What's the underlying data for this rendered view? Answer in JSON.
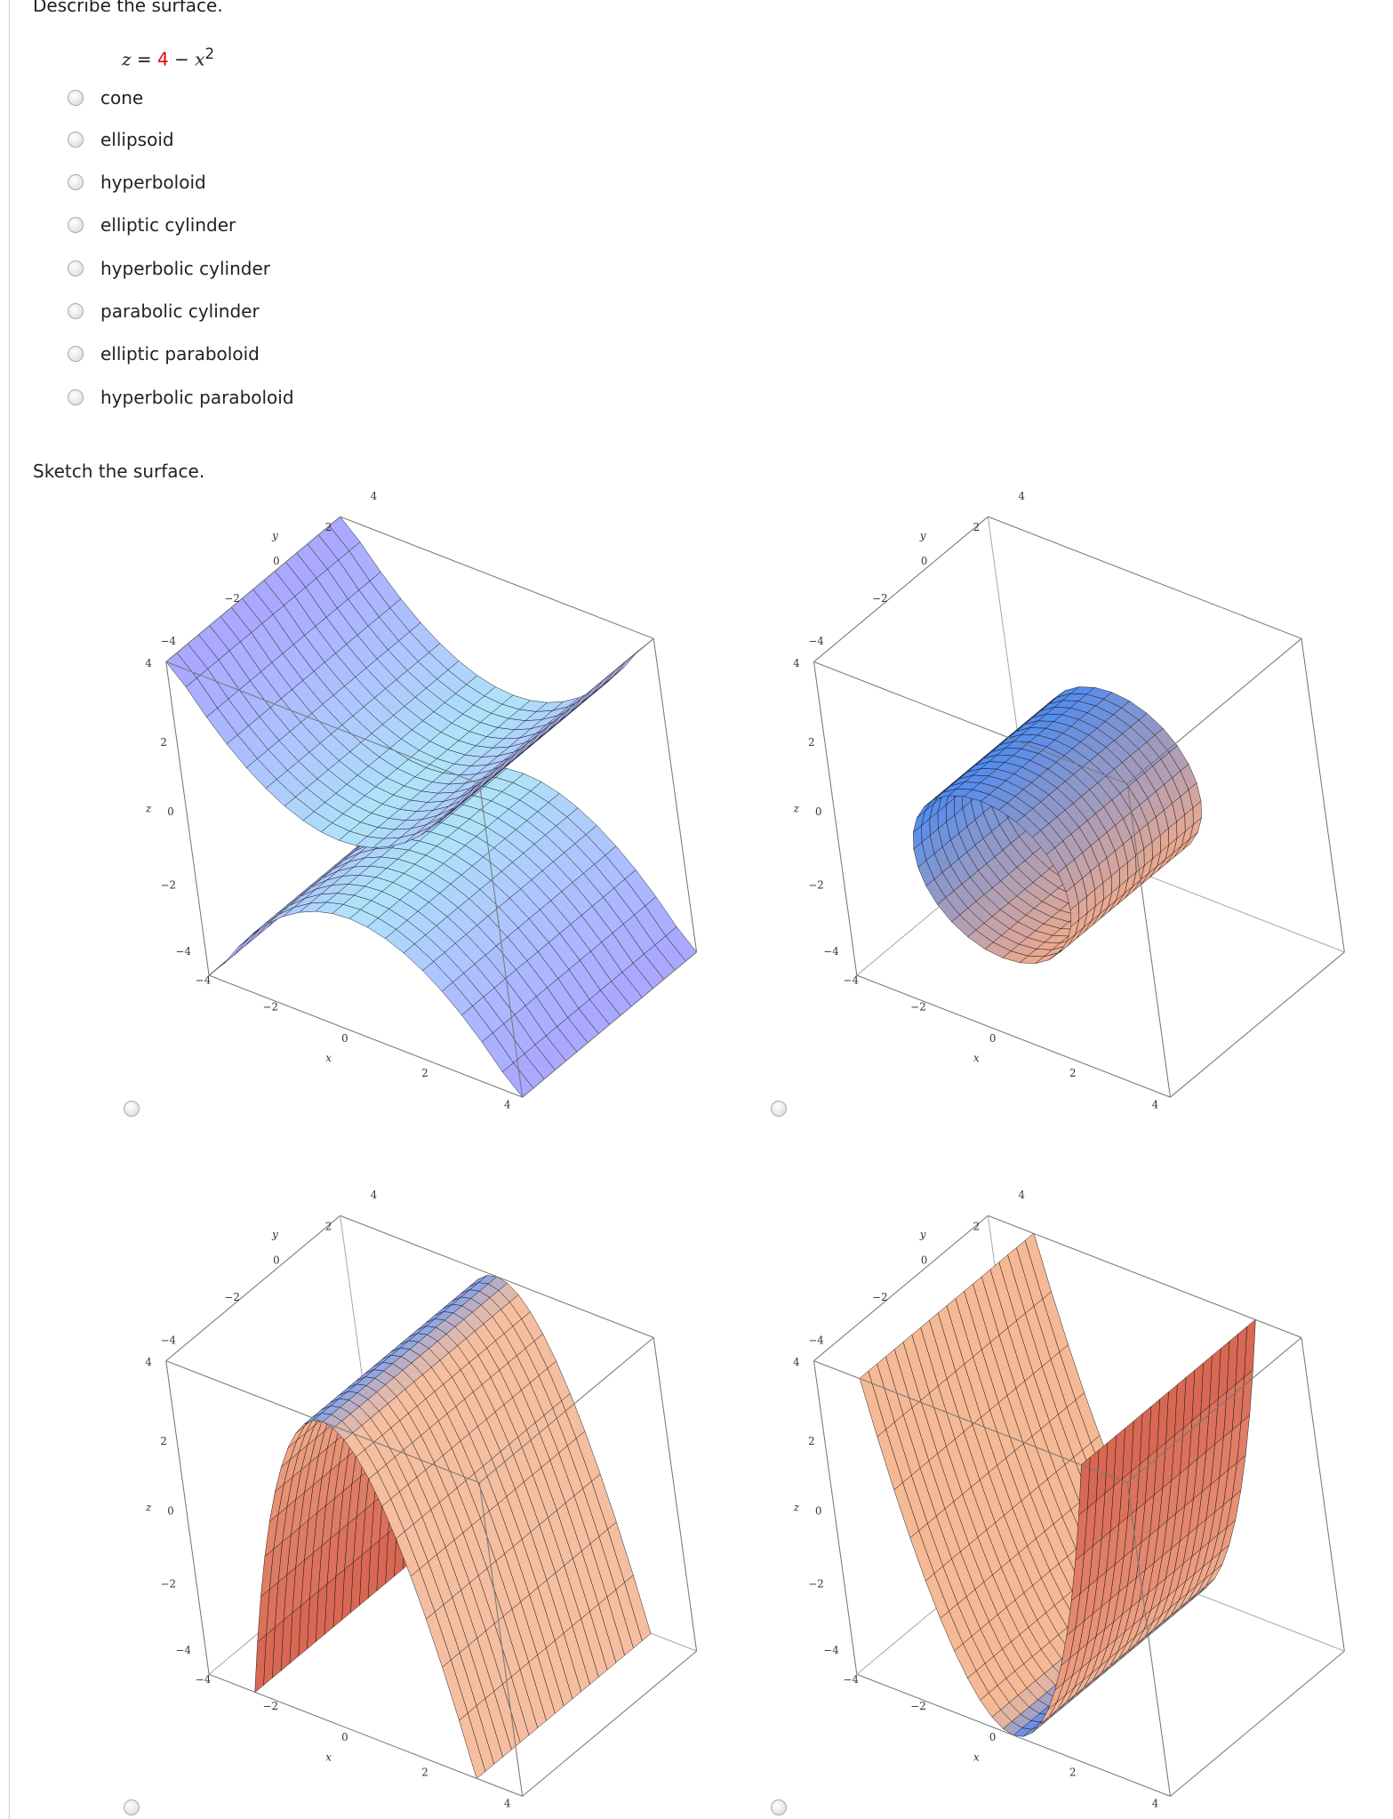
{
  "question": {
    "prompt": "Describe the surface.",
    "equation": {
      "lhs": "z",
      "equals": "=",
      "constant": "4",
      "operator": "−",
      "variable": "x",
      "exponent": "2"
    },
    "options": [
      "cone",
      "ellipsoid",
      "hyperboloid",
      "elliptic cylinder",
      "hyperbolic cylinder",
      "parabolic cylinder",
      "elliptic paraboloid",
      "hyperbolic paraboloid"
    ]
  },
  "sketch": {
    "prompt": "Sketch the surface.",
    "plots": [
      {
        "y_axis": {
          "label": "y",
          "ticks": [
            "−4",
            "−2",
            "0",
            "2",
            "4"
          ]
        },
        "z_axis": {
          "label": "z",
          "ticks": [
            "−4",
            "−2",
            "0",
            "2",
            "4"
          ]
        },
        "x_axis": {
          "label": "x",
          "ticks": [
            "−4",
            "−2",
            "0",
            "2",
            "4"
          ]
        }
      },
      {
        "y_axis": {
          "label": "y",
          "ticks": [
            "−4",
            "−2",
            "0",
            "2",
            "4"
          ]
        },
        "z_axis": {
          "label": "z",
          "ticks": [
            "−4",
            "−2",
            "0",
            "2",
            "4"
          ]
        },
        "x_axis": {
          "label": "x",
          "ticks": [
            "−4",
            "−2",
            "0",
            "2",
            "4"
          ]
        }
      },
      {
        "y_axis": {
          "label": "y",
          "ticks": [
            "−4",
            "−2",
            "0",
            "2",
            "4"
          ]
        },
        "z_axis": {
          "label": "z",
          "ticks": [
            "−4",
            "−2",
            "0",
            "2",
            "4"
          ]
        },
        "x_axis": {
          "label": "x",
          "ticks": [
            "−4",
            "−2",
            "0",
            "2",
            "4"
          ]
        }
      },
      {
        "y_axis": {
          "label": "y",
          "ticks": [
            "−4",
            "−2",
            "0",
            "2",
            "4"
          ]
        },
        "z_axis": {
          "label": "z",
          "ticks": [
            "−4",
            "−2",
            "0",
            "2",
            "4"
          ]
        },
        "x_axis": {
          "label": "x",
          "ticks": [
            "−4",
            "−2",
            "0",
            "2",
            "4"
          ]
        }
      }
    ]
  }
}
